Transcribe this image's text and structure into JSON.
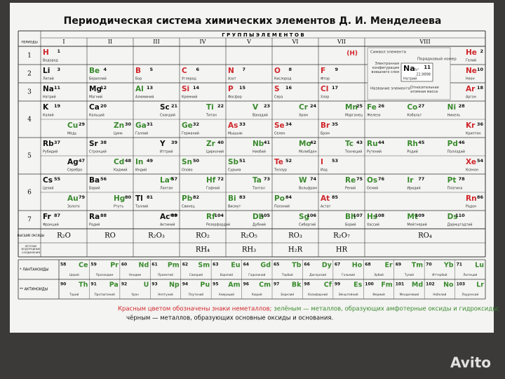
{
  "title": "Периодическая система химических элементов Д. И. Менделеева",
  "table": {
    "periods_header": "ПЕРИОДЫ",
    "groups_header": "Г Р У П П Ы   Э Л Е М Е Н Т О В",
    "groups": [
      "I",
      "II",
      "III",
      "IV",
      "V",
      "VI",
      "VII",
      "VIII"
    ],
    "hydrogen_note": "(H)",
    "rows": [
      {
        "period": "1",
        "cells": [
          [
            {
              "n": 1,
              "s": "H",
              "name": "Водород",
              "color": "#d0262b"
            }
          ],
          [],
          [],
          [],
          [],
          [],
          [],
          [
            {
              "n": 2,
              "s": "He",
              "name": "Гелий",
              "color": "#d0262b"
            }
          ]
        ]
      },
      {
        "period": "2",
        "cells": [
          [
            {
              "n": 3,
              "s": "Li",
              "name": "Литий",
              "color": "#111111"
            }
          ],
          [
            {
              "n": 4,
              "s": "Be",
              "name": "Бериллий",
              "color": "#3a8a2e"
            }
          ],
          [
            {
              "n": 5,
              "s": "B",
              "name": "Бор",
              "color": "#d0262b"
            }
          ],
          [
            {
              "n": 6,
              "s": "C",
              "name": "Углерод",
              "color": "#d0262b"
            }
          ],
          [
            {
              "n": 7,
              "s": "N",
              "name": "Азот",
              "color": "#d0262b"
            }
          ],
          [
            {
              "n": 8,
              "s": "O",
              "name": "Кислород",
              "color": "#d0262b"
            }
          ],
          [
            {
              "n": 9,
              "s": "F",
              "name": "Фтор",
              "color": "#d0262b"
            }
          ],
          [
            {
              "n": 10,
              "s": "Ne",
              "name": "Неон",
              "color": "#d0262b"
            }
          ]
        ]
      },
      {
        "period": "3",
        "cells": [
          [
            {
              "n": 11,
              "s": "Na",
              "name": "Натрий",
              "color": "#111111"
            }
          ],
          [
            {
              "n": 12,
              "s": "Mg",
              "name": "Магний",
              "color": "#111111"
            }
          ],
          [
            {
              "n": 13,
              "s": "Al",
              "name": "Алюминий",
              "color": "#3a8a2e"
            }
          ],
          [
            {
              "n": 14,
              "s": "Si",
              "name": "Кремний",
              "color": "#d0262b"
            }
          ],
          [
            {
              "n": 15,
              "s": "P",
              "name": "Фосфор",
              "color": "#d0262b"
            }
          ],
          [
            {
              "n": 16,
              "s": "S",
              "name": "Сера",
              "color": "#d0262b"
            }
          ],
          [
            {
              "n": 17,
              "s": "Cl",
              "name": "Хлор",
              "color": "#d0262b"
            }
          ],
          [
            {
              "n": 18,
              "s": "Ar",
              "name": "Аргон",
              "color": "#d0262b"
            }
          ]
        ]
      },
      {
        "period": "4",
        "cells": [
          [
            {
              "n": 19,
              "s": "K",
              "name": "Калий",
              "color": "#111111"
            }
          ],
          [
            {
              "n": 20,
              "s": "Ca",
              "name": "Кальций",
              "color": "#111111"
            }
          ],
          [
            {
              "n": 21,
              "s": "Sc",
              "name": "Скандий",
              "color": "#111111"
            }
          ],
          [
            {
              "n": 22,
              "s": "Ti",
              "name": "Титан",
              "color": "#3a8a2e"
            }
          ],
          [
            {
              "n": 23,
              "s": "V",
              "name": "Ванадий",
              "color": "#3a8a2e"
            }
          ],
          [
            {
              "n": 24,
              "s": "Cr",
              "name": "Хром",
              "color": "#3a8a2e"
            }
          ],
          [
            {
              "n": 25,
              "s": "Mn",
              "name": "Марганец",
              "color": "#3a8a2e"
            }
          ],
          [
            {
              "n": 26,
              "s": "Fe",
              "name": "Железо",
              "color": "#3a8a2e"
            },
            {
              "n": 27,
              "s": "Co",
              "name": "Кобальт",
              "color": "#3a8a2e"
            },
            {
              "n": 28,
              "s": "Ni",
              "name": "Никель",
              "color": "#3a8a2e"
            }
          ]
        ]
      },
      {
        "period": null,
        "cells": [
          [
            {
              "n": 29,
              "s": "Cu",
              "name": "Медь",
              "color": "#3a8a2e"
            }
          ],
          [
            {
              "n": 30,
              "s": "Zn",
              "name": "Цинк",
              "color": "#3a8a2e"
            }
          ],
          [
            {
              "n": 31,
              "s": "Ga",
              "name": "Галлий",
              "color": "#3a8a2e"
            }
          ],
          [
            {
              "n": 32,
              "s": "Ge",
              "name": "Германий",
              "color": "#3a8a2e"
            }
          ],
          [
            {
              "n": 33,
              "s": "As",
              "name": "Мышьяк",
              "color": "#d0262b"
            }
          ],
          [
            {
              "n": 34,
              "s": "Se",
              "name": "Селен",
              "color": "#d0262b"
            }
          ],
          [
            {
              "n": 35,
              "s": "Br",
              "name": "Бром",
              "color": "#d0262b"
            }
          ],
          [
            {
              "n": 36,
              "s": "Kr",
              "name": "Криптон",
              "color": "#d0262b"
            }
          ]
        ]
      },
      {
        "period": "5",
        "cells": [
          [
            {
              "n": 37,
              "s": "Rb",
              "name": "Рубидий",
              "color": "#111111"
            }
          ],
          [
            {
              "n": 38,
              "s": "Sr",
              "name": "Стронций",
              "color": "#111111"
            }
          ],
          [
            {
              "n": 39,
              "s": "Y",
              "name": "Иттрий",
              "color": "#111111"
            }
          ],
          [
            {
              "n": 40,
              "s": "Zr",
              "name": "Цирконий",
              "color": "#3a8a2e"
            }
          ],
          [
            {
              "n": 41,
              "s": "Nb",
              "name": "Ниобий",
              "color": "#3a8a2e"
            }
          ],
          [
            {
              "n": 42,
              "s": "Mo",
              "name": "Молибден",
              "color": "#3a8a2e"
            }
          ],
          [
            {
              "n": 43,
              "s": "Tc",
              "name": "Технеций",
              "color": "#3a8a2e"
            }
          ],
          [
            {
              "n": 44,
              "s": "Ru",
              "name": "Рутений",
              "color": "#3a8a2e"
            },
            {
              "n": 45,
              "s": "Rh",
              "name": "Родий",
              "color": "#3a8a2e"
            },
            {
              "n": 46,
              "s": "Pd",
              "name": "Палладий",
              "color": "#3a8a2e"
            }
          ]
        ]
      },
      {
        "period": null,
        "cells": [
          [
            {
              "n": 47,
              "s": "Ag",
              "name": "Серебро",
              "color": "#111111"
            }
          ],
          [
            {
              "n": 48,
              "s": "Cd",
              "name": "Кадмий",
              "color": "#3a8a2e"
            }
          ],
          [
            {
              "n": 49,
              "s": "In",
              "name": "Индий",
              "color": "#3a8a2e"
            }
          ],
          [
            {
              "n": 50,
              "s": "Sn",
              "name": "Олово",
              "color": "#3a8a2e"
            }
          ],
          [
            {
              "n": 51,
              "s": "Sb",
              "name": "Сурьма",
              "color": "#3a8a2e"
            }
          ],
          [
            {
              "n": 52,
              "s": "Te",
              "name": "Теллур",
              "color": "#d0262b"
            }
          ],
          [
            {
              "n": 53,
              "s": "I",
              "name": "Иод",
              "color": "#d0262b"
            }
          ],
          [
            {
              "n": 54,
              "s": "Xe",
              "name": "Ксенон",
              "color": "#d0262b"
            }
          ]
        ]
      },
      {
        "period": "6",
        "cells": [
          [
            {
              "n": 55,
              "s": "Cs",
              "name": "Цезий",
              "color": "#111111"
            }
          ],
          [
            {
              "n": 56,
              "s": "Ba",
              "name": "Барий",
              "color": "#111111"
            }
          ],
          [
            {
              "n": 57,
              "s": "La*",
              "name": "Лантан",
              "color": "#3a8a2e"
            }
          ],
          [
            {
              "n": 72,
              "s": "Hf",
              "name": "Гафний",
              "color": "#3a8a2e"
            }
          ],
          [
            {
              "n": 73,
              "s": "Ta",
              "name": "Тантал",
              "color": "#3a8a2e"
            }
          ],
          [
            {
              "n": 74,
              "s": "W",
              "name": "Вольфрам",
              "color": "#3a8a2e"
            }
          ],
          [
            {
              "n": 75,
              "s": "Re",
              "name": "Рений",
              "color": "#3a8a2e"
            }
          ],
          [
            {
              "n": 76,
              "s": "Os",
              "name": "Осмий",
              "color": "#3a8a2e"
            },
            {
              "n": 77,
              "s": "Ir",
              "name": "Иридий",
              "color": "#3a8a2e"
            },
            {
              "n": 78,
              "s": "Pt",
              "name": "Платина",
              "color": "#3a8a2e"
            }
          ]
        ]
      },
      {
        "period": null,
        "cells": [
          [
            {
              "n": 79,
              "s": "Au",
              "name": "Золото",
              "color": "#3a8a2e"
            }
          ],
          [
            {
              "n": 80,
              "s": "Hg",
              "name": "Ртуть",
              "color": "#3a8a2e"
            }
          ],
          [
            {
              "n": 81,
              "s": "Tl",
              "name": "Таллий",
              "color": "#111111"
            }
          ],
          [
            {
              "n": 82,
              "s": "Pb",
              "name": "Свинец",
              "color": "#3a8a2e"
            }
          ],
          [
            {
              "n": 83,
              "s": "Bi",
              "name": "Висмут",
              "color": "#3a8a2e"
            }
          ],
          [
            {
              "n": 84,
              "s": "Po",
              "name": "Полоний",
              "color": "#3a8a2e"
            }
          ],
          [
            {
              "n": 85,
              "s": "At",
              "name": "Астат",
              "color": "#d0262b"
            }
          ],
          [
            {
              "n": 86,
              "s": "Rn",
              "name": "Радон",
              "color": "#d0262b"
            }
          ]
        ]
      },
      {
        "period": "7",
        "cells": [
          [
            {
              "n": 87,
              "s": "Fr",
              "name": "Франций",
              "color": "#111111"
            }
          ],
          [
            {
              "n": 88,
              "s": "Ra",
              "name": "Радий",
              "color": "#111111"
            }
          ],
          [
            {
              "n": 89,
              "s": "Ac**",
              "name": "Актиний",
              "color": "#111111"
            }
          ],
          [
            {
              "n": 104,
              "s": "Rf",
              "name": "Резерфордий",
              "color": "#3a8a2e"
            }
          ],
          [
            {
              "n": 105,
              "s": "Db",
              "name": "Дубний",
              "color": "#3a8a2e"
            }
          ],
          [
            {
              "n": 106,
              "s": "Sg",
              "name": "Сиборгий",
              "color": "#3a8a2e"
            }
          ],
          [
            {
              "n": 107,
              "s": "Bh",
              "name": "Борий",
              "color": "#3a8a2e"
            }
          ],
          [
            {
              "n": 108,
              "s": "Hs",
              "name": "Хассий",
              "color": "#3a8a2e"
            },
            {
              "n": 109,
              "s": "Mt",
              "name": "Мейтнерий",
              "color": "#3a8a2e"
            },
            {
              "n": 110,
              "s": "Ds",
              "name": "Дармштадтий",
              "color": "#3a8a2e"
            }
          ]
        ]
      }
    ],
    "oxides_label": "ВЫСШИЕ ОКСИДЫ",
    "oxides": [
      "R₂O",
      "RO",
      "R₂O₃",
      "RO₂",
      "R₂O₅",
      "RO₃",
      "R₂O₇",
      "RO₄"
    ],
    "hydrides_label": "ЛЕТУЧИЕ ВОДОРОДНЫЕ СОЕДИНЕНИЯ",
    "hydrides": [
      null,
      null,
      null,
      "RH₄",
      "RH₃",
      "H₂R",
      "HR",
      null
    ],
    "series": [
      {
        "label": "* ЛАНТАНОИДЫ",
        "elements": [
          {
            "n": 58,
            "s": "Ce",
            "name": "Церий"
          },
          {
            "n": 59,
            "s": "Pr",
            "name": "Празеодим"
          },
          {
            "n": 60,
            "s": "Nd",
            "name": "Неодим"
          },
          {
            "n": 61,
            "s": "Pm",
            "name": "Прометий"
          },
          {
            "n": 62,
            "s": "Sm",
            "name": "Самарий"
          },
          {
            "n": 63,
            "s": "Eu",
            "name": "Европий"
          },
          {
            "n": 64,
            "s": "Gd",
            "name": "Гадолиний"
          },
          {
            "n": 65,
            "s": "Tb",
            "name": "Тербий"
          },
          {
            "n": 66,
            "s": "Dy",
            "name": "Диспрозий"
          },
          {
            "n": 67,
            "s": "Ho",
            "name": "Гольмий"
          },
          {
            "n": 68,
            "s": "Er",
            "name": "Эрбий"
          },
          {
            "n": 69,
            "s": "Tm",
            "name": "Тулий"
          },
          {
            "n": 70,
            "s": "Yb",
            "name": "Иттербий"
          },
          {
            "n": 71,
            "s": "Lu",
            "name": "Лютеций"
          }
        ]
      },
      {
        "label": "** АКТИНОИДЫ",
        "elements": [
          {
            "n": 90,
            "s": "Th",
            "name": "Торий"
          },
          {
            "n": 91,
            "s": "Pa",
            "name": "Протактиний"
          },
          {
            "n": 92,
            "s": "U",
            "name": "Уран"
          },
          {
            "n": 93,
            "s": "Np",
            "name": "Нептуний"
          },
          {
            "n": 94,
            "s": "Pu",
            "name": "Плутоний"
          },
          {
            "n": 95,
            "s": "Am",
            "name": "Америций"
          },
          {
            "n": 96,
            "s": "Cm",
            "name": "Кюрий"
          },
          {
            "n": 97,
            "s": "Bk",
            "name": "Берклий"
          },
          {
            "n": 98,
            "s": "Cf",
            "name": "Калифорний"
          },
          {
            "n": 99,
            "s": "Es",
            "name": "Эйнштейний"
          },
          {
            "n": 100,
            "s": "Fm",
            "name": "Фермий"
          },
          {
            "n": 101,
            "s": "Md",
            "name": "Менделевий"
          },
          {
            "n": 102,
            "s": "No",
            "name": "Нобелий"
          },
          {
            "n": 103,
            "s": "Lr",
            "name": "Лоуренсий"
          }
        ]
      }
    ]
  },
  "legend": {
    "symbol_label": "Символ элемента",
    "number_label": "Порядковый номер",
    "config_label": "Электронная конфигурация внешнего слоя",
    "name_label": "Название элемента",
    "mass_label": "Относительная атомная масса",
    "symbol": "Na",
    "number": "11",
    "config": "3s¹",
    "mass": "22,9898",
    "name": "Натрий"
  },
  "notes": [
    {
      "text": "Красным цветом обозначены знаки неметаллов;",
      "color": "#d0262b"
    },
    {
      "text": "зелёным — металлов, образующих амфотерные оксиды и гидроксиды;",
      "color": "#3a8a2e"
    },
    {
      "text": "чёрным — металлов, образующих основные оксиды и основания.",
      "color": "#111111"
    }
  ],
  "watermark": "Avito"
}
